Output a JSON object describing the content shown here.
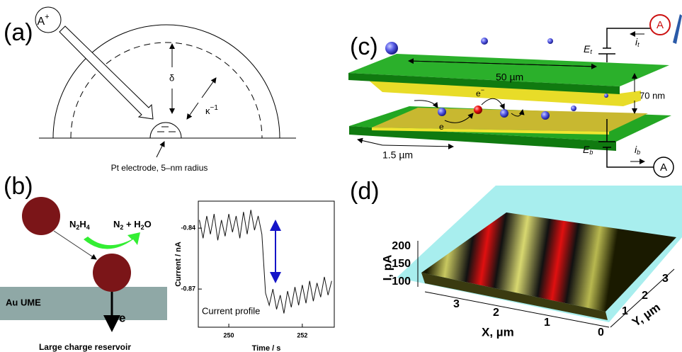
{
  "panel_a": {
    "label": "(a)",
    "ion": [
      "A",
      "+"
    ],
    "delta": "δ",
    "kappa": [
      "κ",
      "−1"
    ],
    "electrode_label": "Pt electrode, 5–nm radius"
  },
  "panel_b": {
    "label": "(b)",
    "reactant": [
      "N",
      "2",
      "H",
      "4"
    ],
    "product": [
      "N",
      "2",
      " + H",
      "2",
      "O"
    ],
    "electrode": "Au UME",
    "electron": "e",
    "reservoir": "Large charge reservoir"
  },
  "chart_data": {
    "type": "line",
    "y_label": "Current / nA",
    "x_label": "Time / s",
    "annotation": "Current profile",
    "color": "#111111",
    "x": [
      249.2,
      249.3,
      249.4,
      249.5,
      249.6,
      249.7,
      249.8,
      249.9,
      250.0,
      250.1,
      250.2,
      250.3,
      250.4,
      250.5,
      250.6,
      250.7,
      250.8,
      250.9,
      251.0,
      251.1,
      251.2,
      251.3,
      251.4,
      251.5,
      251.6,
      251.7,
      251.8,
      251.9,
      252.0,
      252.1,
      252.2,
      252.3,
      252.4,
      252.5,
      252.6,
      252.7,
      252.8
    ],
    "values": [
      -0.836,
      -0.845,
      -0.834,
      -0.843,
      -0.833,
      -0.846,
      -0.836,
      -0.844,
      -0.833,
      -0.842,
      -0.834,
      -0.845,
      -0.832,
      -0.843,
      -0.831,
      -0.841,
      -0.834,
      -0.843,
      -0.872,
      -0.878,
      -0.87,
      -0.88,
      -0.873,
      -0.882,
      -0.871,
      -0.879,
      -0.869,
      -0.878,
      -0.868,
      -0.877,
      -0.866,
      -0.876,
      -0.867,
      -0.874,
      -0.864,
      -0.873,
      -0.866
    ],
    "xlim": [
      249.17,
      252.87
    ],
    "ylim": [
      -0.8888,
      -0.8267
    ],
    "xticks": [
      250,
      252
    ],
    "yticks": [
      -0.84,
      -0.87
    ]
  },
  "panel_c": {
    "label": "(c)",
    "length": "50 µm",
    "gap": "70 nm",
    "width": "1.5 µm",
    "top_potential": [
      "E",
      "t"
    ],
    "bottom_potential": [
      "E",
      "b"
    ],
    "top_current": [
      "i",
      "t"
    ],
    "bottom_current": [
      "i",
      "b"
    ],
    "ammeter_top": "A",
    "ammeter_bottom": "A",
    "electron_top": [
      "e",
      "−"
    ],
    "electron_bottom": "e"
  },
  "panel_d": {
    "label": "(d)",
    "z_label": "I, pA",
    "x_label": "X, µm",
    "y_label": "Y, µm",
    "z_ticks": [
      100,
      150,
      200
    ],
    "x_ticks": [
      3,
      2,
      1,
      0
    ],
    "y_ticks": [
      1,
      2,
      3
    ]
  }
}
